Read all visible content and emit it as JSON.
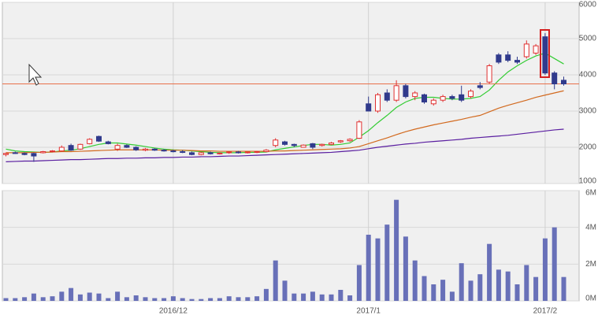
{
  "chart_data": [
    {
      "type": "candlestick",
      "open": [
        1800,
        1850,
        1830,
        1830,
        1850,
        1880,
        1900,
        2050,
        1950,
        2100,
        2300,
        2150,
        1950,
        2050,
        2000,
        1920,
        1950,
        1920,
        1900,
        1880,
        1850,
        1800,
        1850,
        1820,
        1850,
        1870,
        1850,
        1860,
        1880,
        2050,
        2150,
        2080,
        2000,
        2100,
        2050,
        2080,
        2150,
        2180,
        2250,
        3200,
        3000,
        3500,
        3300,
        3700,
        3400,
        3450,
        3200,
        3300,
        3400,
        3450,
        3400,
        3700,
        3800,
        4550,
        4550,
        4400,
        4500,
        4600,
        5050,
        4050,
        3850
      ],
      "high": [
        1850,
        1880,
        1860,
        1850,
        1900,
        1920,
        2050,
        2100,
        2100,
        2250,
        2320,
        2180,
        2100,
        2080,
        2030,
        1980,
        1970,
        1950,
        1930,
        1920,
        1880,
        1870,
        1880,
        1860,
        1890,
        1900,
        1880,
        1900,
        1950,
        2250,
        2180,
        2100,
        2080,
        2120,
        2100,
        2150,
        2200,
        2250,
        2750,
        3400,
        3500,
        3600,
        3850,
        3750,
        3550,
        3480,
        3350,
        3450,
        3450,
        3700,
        3600,
        3800,
        4300,
        4600,
        4650,
        4500,
        4950,
        4850,
        5150,
        4100,
        3950
      ],
      "low": [
        1750,
        1820,
        1780,
        1600,
        1830,
        1860,
        1880,
        1900,
        1930,
        2080,
        2150,
        2080,
        1900,
        1980,
        1900,
        1890,
        1900,
        1880,
        1860,
        1840,
        1780,
        1780,
        1800,
        1800,
        1820,
        1830,
        1830,
        1840,
        1860,
        2000,
        2050,
        2000,
        1990,
        1950,
        2020,
        2060,
        2120,
        2150,
        2230,
        3000,
        2950,
        3250,
        3250,
        3350,
        3300,
        3200,
        3150,
        3250,
        3300,
        3250,
        3350,
        3600,
        3750,
        4300,
        4350,
        4300,
        4450,
        4550,
        4000,
        3600,
        3700
      ],
      "close": [
        1830,
        1830,
        1800,
        1760,
        1880,
        1900,
        2000,
        1920,
        2080,
        2220,
        2170,
        2100,
        2050,
        2000,
        1930,
        1950,
        1920,
        1900,
        1880,
        1860,
        1800,
        1850,
        1820,
        1840,
        1870,
        1850,
        1870,
        1880,
        1920,
        2200,
        2080,
        2050,
        2060,
        2000,
        2080,
        2120,
        2180,
        2220,
        2700,
        3000,
        3450,
        3300,
        3700,
        3400,
        3500,
        3250,
        3300,
        3400,
        3350,
        3300,
        3550,
        3650,
        4250,
        4350,
        4400,
        4350,
        4850,
        4800,
        4050,
        3750,
        3750
      ],
      "up_color": "#e03030",
      "down_color": "#303a8c",
      "series": [
        {
          "color": "#33cc33",
          "values": [
            1950,
            1900,
            1880,
            1870,
            1860,
            1870,
            1900,
            1920,
            1960,
            2020,
            2080,
            2120,
            2120,
            2090,
            2060,
            2020,
            1980,
            1950,
            1930,
            1920,
            1900,
            1880,
            1860,
            1850,
            1850,
            1850,
            1860,
            1860,
            1870,
            1930,
            1970,
            2010,
            2050,
            2080,
            2080,
            2060,
            2080,
            2120,
            2280,
            2460,
            2680,
            2880,
            3100,
            3250,
            3350,
            3380,
            3380,
            3350,
            3330,
            3330,
            3350,
            3400,
            3580,
            3850,
            4080,
            4250,
            4400,
            4520,
            4600,
            4450,
            4300
          ]
        },
        {
          "color": "#d2691e",
          "values": [
            1850,
            1850,
            1850,
            1860,
            1860,
            1870,
            1880,
            1880,
            1890,
            1900,
            1910,
            1920,
            1930,
            1930,
            1930,
            1930,
            1930,
            1920,
            1920,
            1920,
            1910,
            1900,
            1900,
            1890,
            1890,
            1890,
            1890,
            1890,
            1890,
            1900,
            1900,
            1910,
            1920,
            1930,
            1940,
            1950,
            1960,
            1980,
            2020,
            2100,
            2180,
            2260,
            2350,
            2430,
            2500,
            2560,
            2620,
            2670,
            2720,
            2770,
            2830,
            2880,
            2980,
            3080,
            3160,
            3230,
            3300,
            3380,
            3440,
            3500,
            3560
          ]
        },
        {
          "color": "#5a1ea0",
          "values": [
            1600,
            1610,
            1620,
            1620,
            1630,
            1640,
            1650,
            1660,
            1660,
            1670,
            1680,
            1690,
            1690,
            1700,
            1700,
            1710,
            1710,
            1720,
            1720,
            1730,
            1730,
            1740,
            1740,
            1750,
            1760,
            1760,
            1770,
            1780,
            1790,
            1800,
            1810,
            1820,
            1830,
            1840,
            1850,
            1860,
            1880,
            1900,
            1920,
            1960,
            2000,
            2030,
            2060,
            2090,
            2110,
            2140,
            2160,
            2180,
            2200,
            2220,
            2250,
            2270,
            2290,
            2310,
            2330,
            2360,
            2390,
            2420,
            2450,
            2480,
            2500
          ]
        }
      ],
      "hline": 3750,
      "hline_color": "#e8704a",
      "ylim": [
        1000,
        6000
      ],
      "yticks": [
        1000,
        2000,
        3000,
        4000,
        5000,
        6000
      ],
      "grid": true
    },
    {
      "type": "bar",
      "color": "#6870b8",
      "categories": [
        null,
        null,
        null,
        null,
        null,
        null,
        null,
        null,
        null,
        null,
        null,
        null,
        null,
        null,
        null,
        null,
        null,
        null,
        "2016/12",
        null,
        null,
        null,
        null,
        null,
        null,
        null,
        null,
        null,
        null,
        null,
        null,
        null,
        null,
        null,
        null,
        null,
        null,
        null,
        null,
        "2017/1",
        null,
        null,
        null,
        null,
        null,
        null,
        null,
        null,
        null,
        null,
        null,
        null,
        null,
        null,
        null,
        null,
        null,
        null,
        "2017/2",
        null,
        null
      ],
      "values": [
        150000,
        150000,
        200000,
        400000,
        200000,
        250000,
        500000,
        700000,
        350000,
        450000,
        400000,
        150000,
        500000,
        200000,
        300000,
        200000,
        150000,
        150000,
        250000,
        150000,
        100000,
        100000,
        150000,
        150000,
        250000,
        200000,
        200000,
        250000,
        650000,
        2200000,
        1100000,
        400000,
        400000,
        500000,
        350000,
        350000,
        600000,
        300000,
        1950000,
        3600000,
        3400000,
        4150000,
        5500000,
        3500000,
        2200000,
        1350000,
        900000,
        1150000,
        500000,
        2050000,
        1100000,
        1450000,
        3100000,
        1700000,
        1600000,
        900000,
        1950000,
        1300000,
        3400000,
        4000000,
        1300000
      ],
      "ylim": [
        0,
        6000000
      ],
      "yticks": [
        {
          "value": 0,
          "label": "0M"
        },
        {
          "value": 2000000,
          "label": "2M"
        },
        {
          "value": 4000000,
          "label": "4M"
        },
        {
          "value": 6000000,
          "label": "6M"
        }
      ],
      "grid": true
    }
  ]
}
